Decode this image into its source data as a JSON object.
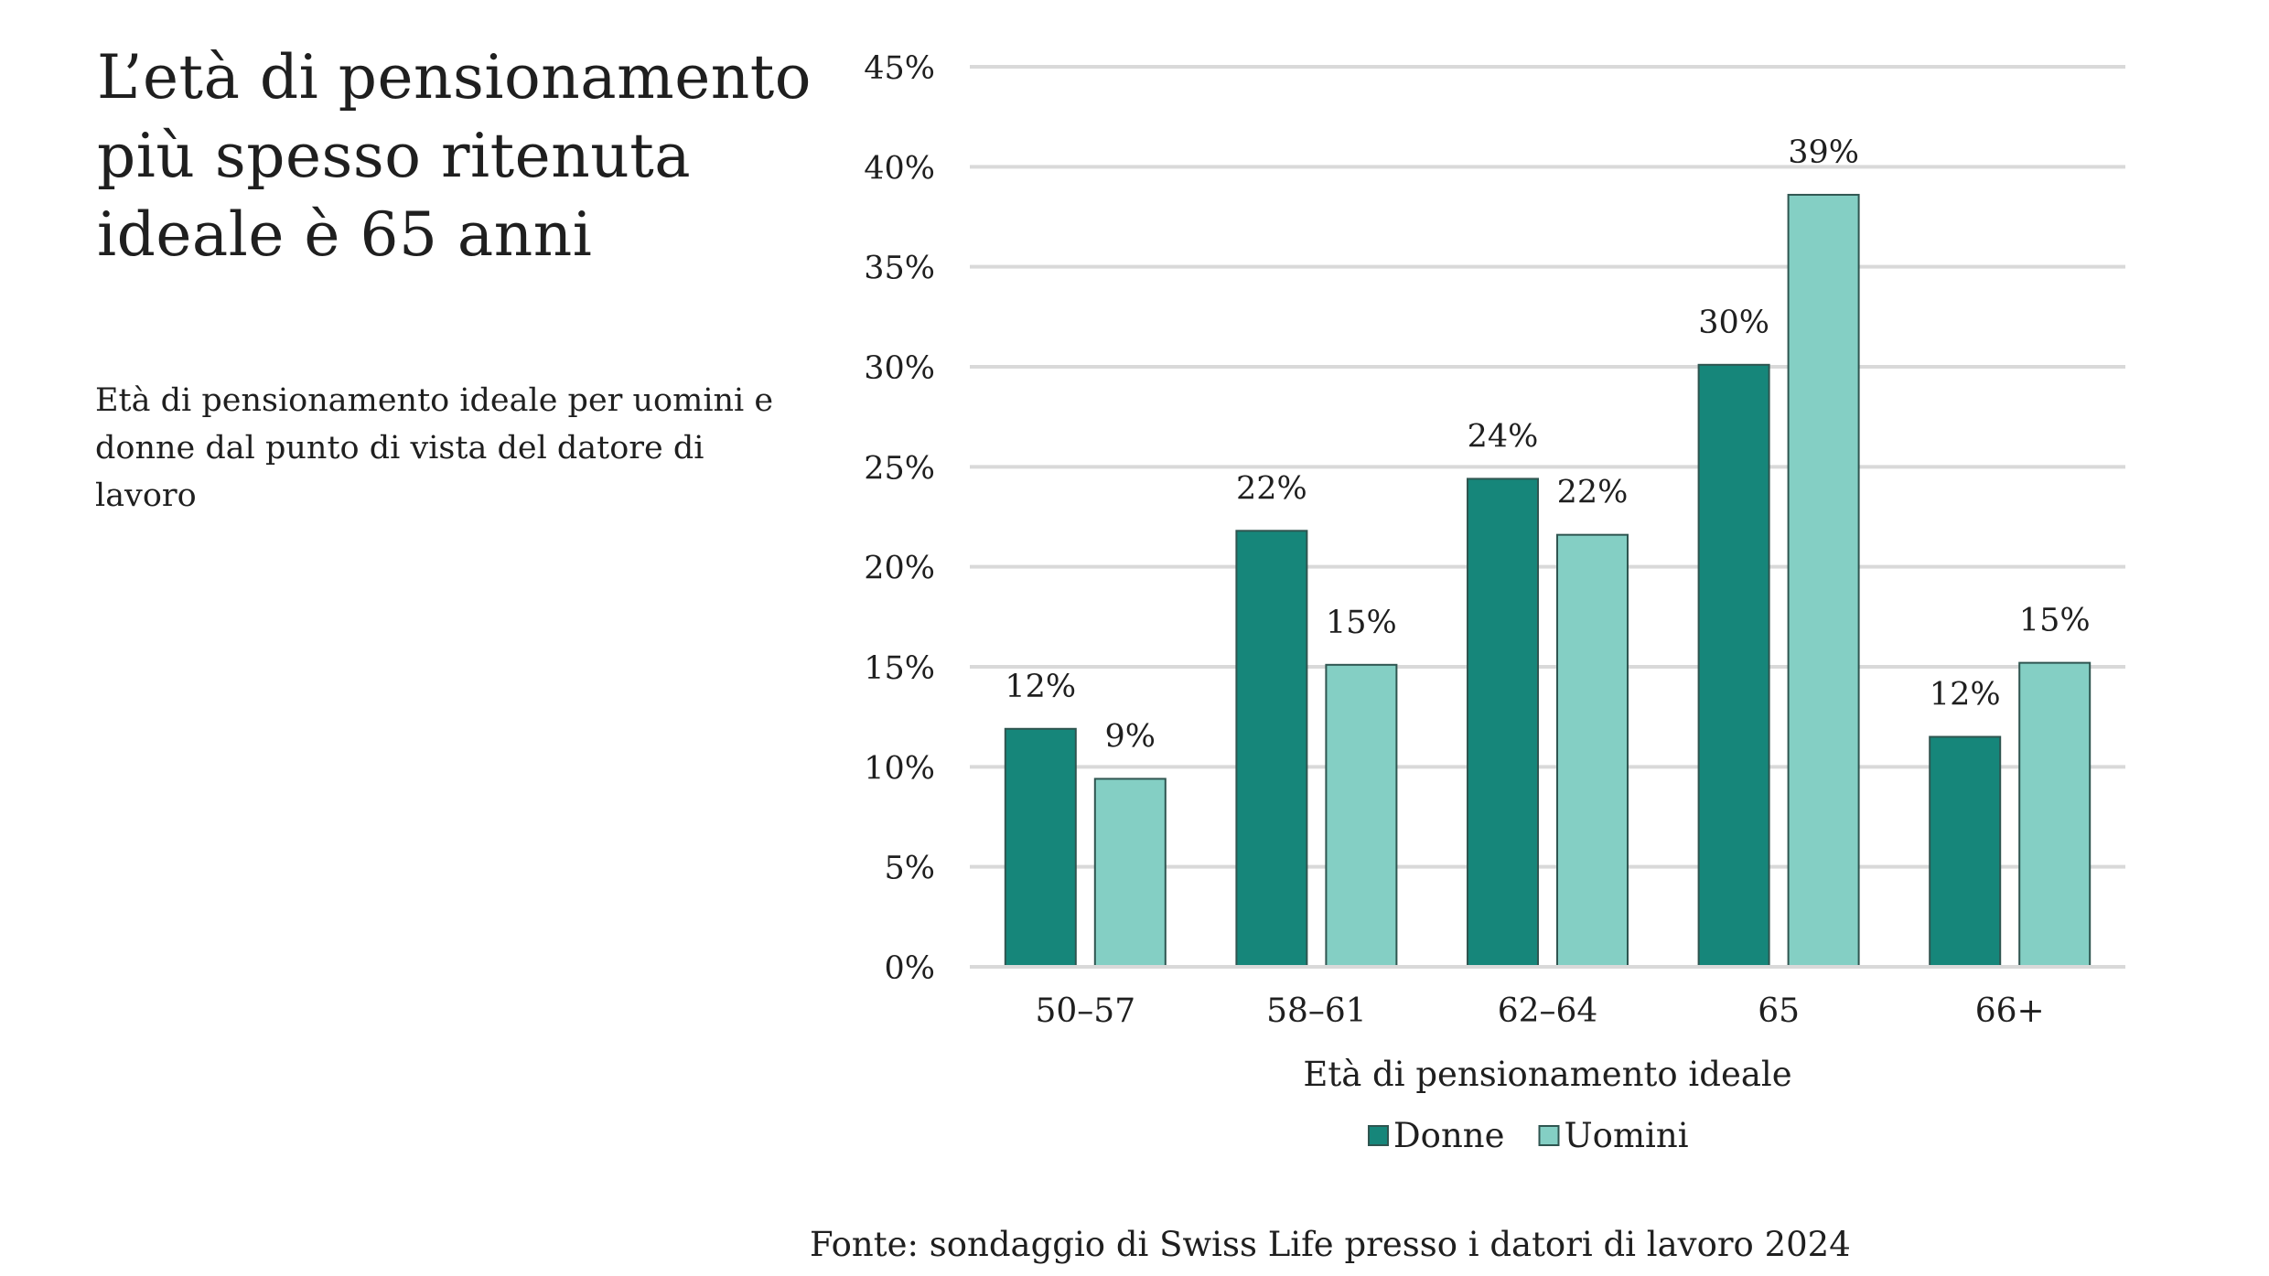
{
  "title": {
    "line1": "L’età di pensionamento",
    "line2": "più spesso ritenuta",
    "line3": "ideale è 65 anni"
  },
  "subtitle": {
    "line1": "Età di pensionamento ideale per uomini e",
    "line2": "donne dal punto di vista del datore di lavoro"
  },
  "source": "Fonte: sondaggio di Swiss Life presso i datori di lavoro 2024",
  "chart_data": {
    "type": "bar",
    "categories": [
      "50–57",
      "58–61",
      "62–64",
      "65",
      "66+"
    ],
    "series": [
      {
        "name": "Donne",
        "values": [
          11.9,
          21.8,
          24.4,
          30.1,
          11.5
        ],
        "labels": [
          "12%",
          "22%",
          "24%",
          "30%",
          "12%"
        ],
        "color": "#16867a"
      },
      {
        "name": "Uomini",
        "values": [
          9.4,
          15.1,
          21.6,
          38.6,
          15.2
        ],
        "labels": [
          "9%",
          "15%",
          "22%",
          "39%",
          "15%"
        ],
        "color": "#84cfc4"
      }
    ],
    "xlabel": "Età di pensionamento ideale",
    "ylabel": "",
    "ylim": [
      0,
      45
    ],
    "yticks": [
      "0%",
      "5%",
      "10%",
      "15%",
      "20%",
      "25%",
      "30%",
      "35%",
      "40%",
      "45%"
    ],
    "grid": true,
    "legend_position": "bottom"
  }
}
